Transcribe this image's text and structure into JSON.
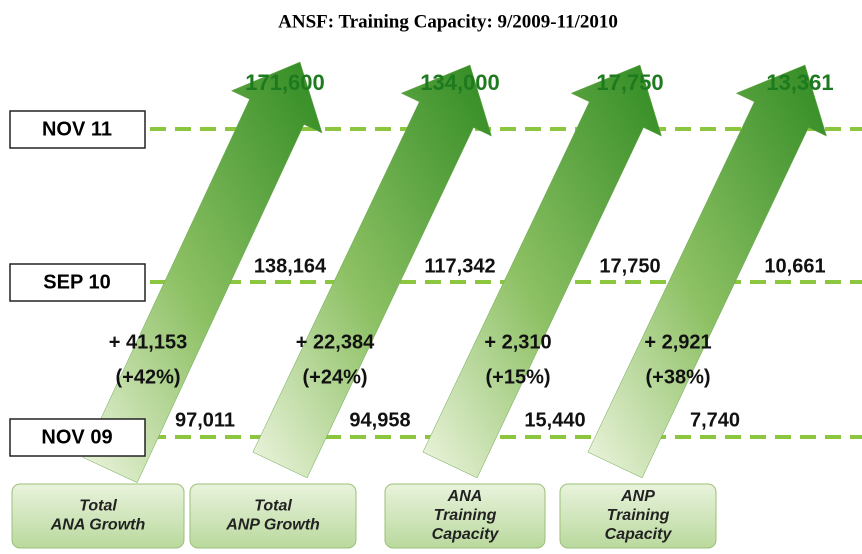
{
  "title": "ANSF: Training Capacity: 9/2009-11/2010",
  "rows": [
    "NOV 11",
    "SEP 10",
    "NOV 09"
  ],
  "columns": [
    {
      "label": [
        "Total",
        "ANA Growth"
      ],
      "nov11": "171,600",
      "sep10": "138,164",
      "nov09": "97,011",
      "change": "+ 41,153",
      "percent": "(+42%)"
    },
    {
      "label": [
        "Total",
        "ANP Growth"
      ],
      "nov11": "134,000",
      "sep10": "117,342",
      "nov09": "94,958",
      "change": "+ 22,384",
      "percent": "(+24%)"
    },
    {
      "label": [
        "ANA",
        "Training",
        "Capacity"
      ],
      "nov11": "17,750",
      "sep10": "17,750",
      "nov09": "15,440",
      "change": "+ 2,310",
      "percent": "(+15%)"
    },
    {
      "label": [
        "ANP",
        "Training",
        "Capacity"
      ],
      "nov11": "13,361",
      "sep10": "10,661",
      "nov09": "7,740",
      "change": "+ 2,921",
      "percent": "(+38%)"
    }
  ]
}
